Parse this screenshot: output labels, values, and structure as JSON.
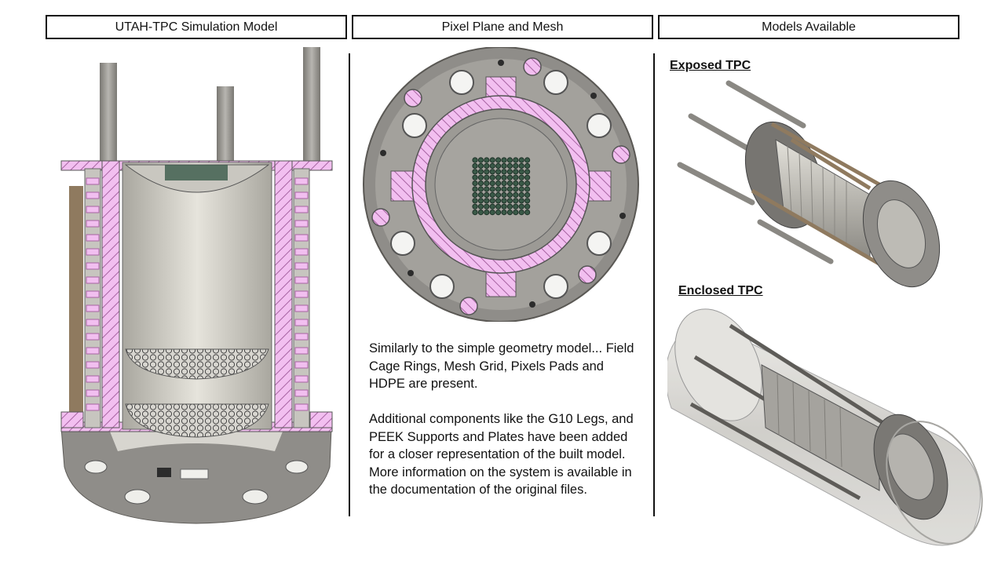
{
  "headers": {
    "left": "UTAH-TPC Simulation Model",
    "middle": "Pixel Plane and Mesh",
    "right": "Models Available"
  },
  "labels": {
    "exposed": "Exposed TPC",
    "enclosed": "Enclosed TPC"
  },
  "description": {
    "paragraph1": "Similarly to the simple geometry model... Field Cage Rings, Mesh Grid, Pixels Pads and HDPE are present.",
    "paragraph2": "Additional components like the G10 Legs, and PEEK Supports and Plates have been added for a closer representation of the built model. More information on the system is available in the documentation of the original files."
  },
  "colors": {
    "metal": "#8f8d89",
    "metal_light": "#c9c7c2",
    "hdpe_pink": "#f2bff0",
    "hatch": "#a763a2",
    "leg_brown": "#8f7a5f",
    "pixel_green": "#2f4a3c"
  }
}
